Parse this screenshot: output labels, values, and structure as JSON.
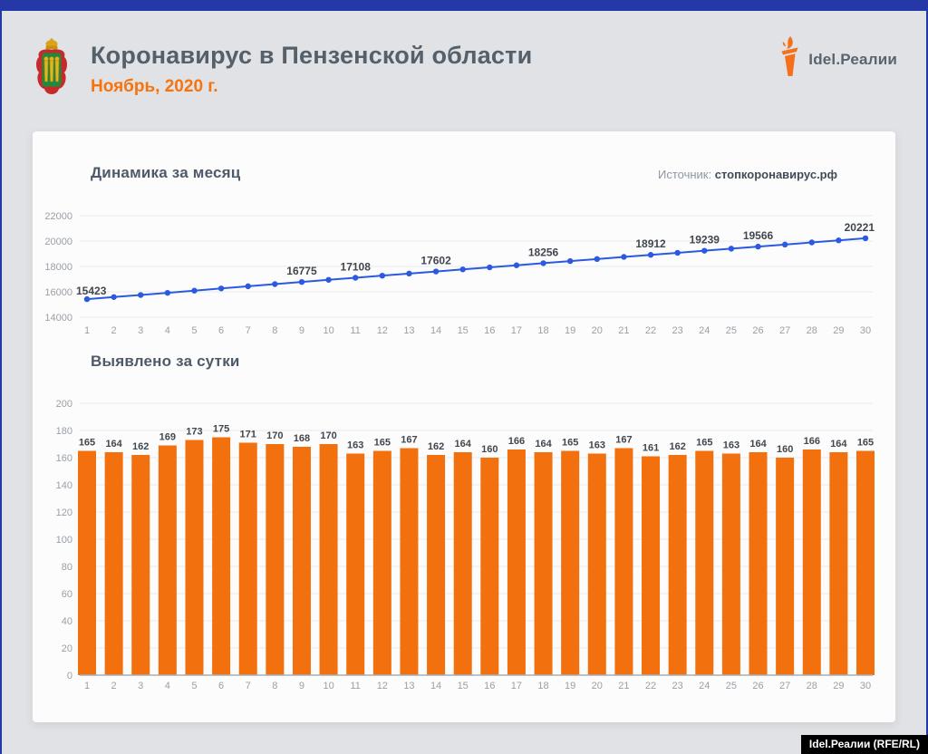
{
  "header": {
    "title": "Коронавирус в Пензенской области",
    "subtitle": "Ноябрь, 2020 г.",
    "brand": "Idel.Реалии",
    "emblem": "penza-oblast-coat-of-arms"
  },
  "source": {
    "label": "Источник:",
    "value": "стопкоронавирус.рф"
  },
  "footer": {
    "credit": "Idel.Реалии (RFE/RL)"
  },
  "colors": {
    "frame_blue": "#2438a8",
    "line_blue": "#2b59e0",
    "bar_orange": "#f2700d",
    "subtitle_orange": "#f7730e",
    "title_slate": "#55606a",
    "tick_gray": "#9aa0a6",
    "value_label_dark": "#41474d",
    "grid_gray": "#e9eaec",
    "axis_gray": "#a9adb3",
    "page_bg": "#e1e2e5",
    "card_bg": "#fcfcfd"
  },
  "chart_data": [
    {
      "type": "line",
      "title": "Динамика за месяц",
      "x": [
        1,
        2,
        3,
        4,
        5,
        6,
        7,
        8,
        9,
        10,
        11,
        12,
        13,
        14,
        15,
        16,
        17,
        18,
        19,
        20,
        21,
        22,
        23,
        24,
        25,
        26,
        27,
        28,
        29,
        30
      ],
      "values": [
        15423,
        15587,
        15749,
        15918,
        16091,
        16266,
        16437,
        16607,
        16775,
        16945,
        17108,
        17273,
        17440,
        17602,
        17766,
        17926,
        18092,
        18256,
        18421,
        18584,
        18751,
        18912,
        19074,
        19239,
        19402,
        19566,
        19726,
        19892,
        20056,
        20221
      ],
      "labeled_days": [
        1,
        9,
        11,
        14,
        18,
        22,
        24,
        26,
        30
      ],
      "xlabel": "",
      "ylabel": "",
      "ylim": [
        14000,
        22000
      ],
      "yticks": [
        14000,
        16000,
        18000,
        20000,
        22000
      ],
      "grid": true,
      "legend": "none",
      "markers": true
    },
    {
      "type": "bar",
      "title": "Выявлено за сутки",
      "categories": [
        1,
        2,
        3,
        4,
        5,
        6,
        7,
        8,
        9,
        10,
        11,
        12,
        13,
        14,
        15,
        16,
        17,
        18,
        19,
        20,
        21,
        22,
        23,
        24,
        25,
        26,
        27,
        28,
        29,
        30
      ],
      "values": [
        165,
        164,
        162,
        169,
        173,
        175,
        171,
        170,
        168,
        170,
        163,
        165,
        167,
        162,
        164,
        160,
        166,
        164,
        165,
        163,
        167,
        161,
        162,
        165,
        163,
        164,
        160,
        166,
        164,
        165
      ],
      "xlabel": "",
      "ylabel": "",
      "ylim": [
        0,
        200
      ],
      "yticks": [
        0,
        20,
        40,
        60,
        80,
        100,
        120,
        140,
        160,
        180,
        200
      ],
      "grid": true,
      "legend": "none",
      "data_labels": true
    }
  ]
}
